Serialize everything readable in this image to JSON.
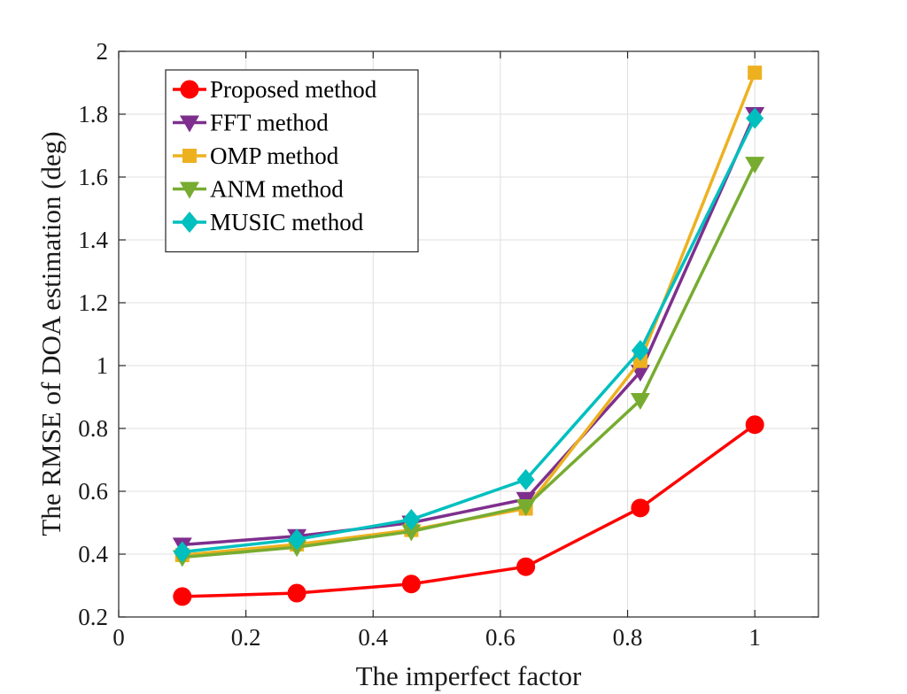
{
  "chart_data": {
    "type": "line",
    "title": "",
    "xlabel": "The imperfect factor",
    "ylabel": "The RMSE of DOA estimation (deg)",
    "xlim": [
      0,
      1.1
    ],
    "ylim": [
      0.2,
      2
    ],
    "grid": true,
    "legend_position": "top-left",
    "x_ticks": [
      0,
      0.2,
      0.4,
      0.6,
      0.8,
      1
    ],
    "y_ticks": [
      0.2,
      0.4,
      0.6,
      0.8,
      1,
      1.2,
      1.4,
      1.6,
      1.8,
      2
    ],
    "x_tick_labels": [
      "0",
      "0.2",
      "0.4",
      "0.6",
      "0.8",
      "1"
    ],
    "y_tick_labels": [
      "0.2",
      "0.4",
      "0.6",
      "0.8",
      "1",
      "1.2",
      "1.4",
      "1.6",
      "1.8",
      "2"
    ],
    "x": [
      0.1,
      0.28,
      0.46,
      0.64,
      0.82,
      1.0
    ],
    "series": [
      {
        "name": "Proposed method",
        "color": "#ff0000",
        "marker": "circle",
        "values": [
          0.265,
          0.276,
          0.305,
          0.36,
          0.547,
          0.812
        ]
      },
      {
        "name": "FFT method",
        "color": "#7e2f8e",
        "marker": "triangle-down",
        "values": [
          0.43,
          0.457,
          0.5,
          0.575,
          0.98,
          1.8
        ]
      },
      {
        "name": "OMP method",
        "color": "#edb120",
        "marker": "square",
        "values": [
          0.397,
          0.431,
          0.477,
          0.545,
          1.015,
          1.932
        ]
      },
      {
        "name": "ANM method",
        "color": "#77ac30",
        "marker": "triangle-down",
        "values": [
          0.39,
          0.422,
          0.472,
          0.552,
          0.89,
          1.642
        ]
      },
      {
        "name": "MUSIC method",
        "color": "#00bfbf",
        "marker": "diamond",
        "values": [
          0.407,
          0.447,
          0.51,
          0.637,
          1.048,
          1.787
        ]
      }
    ]
  }
}
